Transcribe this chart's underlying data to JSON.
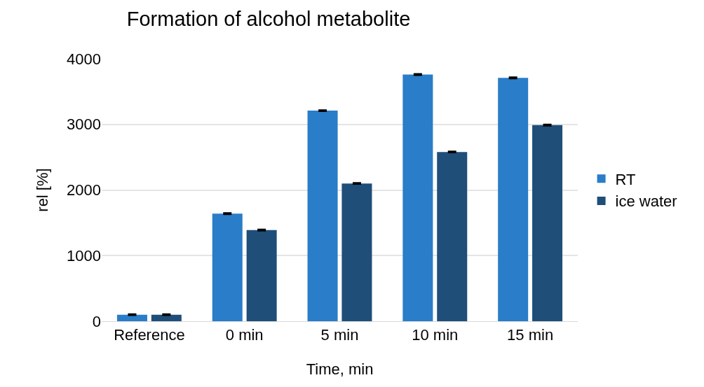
{
  "chart_data": {
    "type": "bar",
    "title": "Formation of alcohol metabolite",
    "xlabel": "Time, min",
    "ylabel": "rel [%]",
    "categories": [
      "Reference",
      "0 min",
      "5 min",
      "10 min",
      "15 min"
    ],
    "series": [
      {
        "name": "RT",
        "color": "#2a7dc8",
        "values": [
          100,
          1640,
          3210,
          3760,
          3710
        ],
        "errors": [
          10,
          10,
          10,
          10,
          10
        ]
      },
      {
        "name": "ice water",
        "color": "#1f4e79",
        "values": [
          100,
          1390,
          2100,
          2580,
          2990
        ],
        "errors": [
          10,
          10,
          10,
          10,
          10
        ]
      }
    ],
    "ylim": [
      0,
      4000
    ],
    "yticks": [
      0,
      1000,
      2000,
      3000,
      4000
    ],
    "grid": "y",
    "legend": "right"
  }
}
